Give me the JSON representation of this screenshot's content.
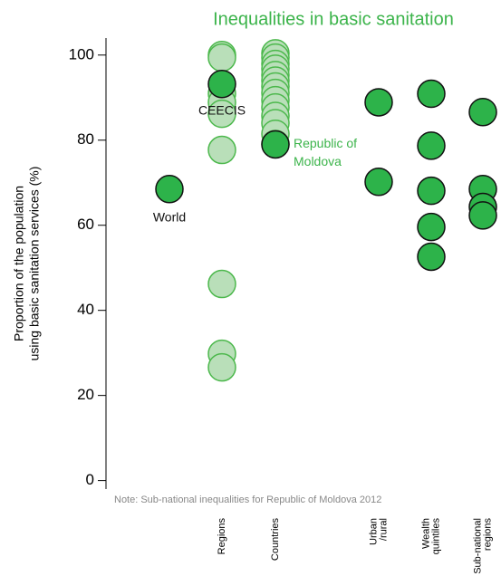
{
  "chart_data": {
    "type": "strip",
    "title": "Inequalities in basic sanitation",
    "ylabel": [
      "Proportion of the population",
      "using basic sanitation services (%)"
    ],
    "note": "Note: Sub-national inequalities for Republic of Moldova  2012",
    "categories": [
      null,
      [
        "Regions"
      ],
      [
        "Countries"
      ],
      [
        "Urban",
        "/rural"
      ],
      [
        "Wealth",
        "quintiles"
      ],
      [
        "Sub-national",
        "regions"
      ]
    ],
    "ylim": [
      -2,
      104
    ],
    "yticks": [
      0,
      20,
      40,
      60,
      80,
      100
    ],
    "series": [
      {
        "color": "#b9dfb9",
        "stroke": "#4cb84c",
        "values": [
          [],
          [
            100,
            99.4,
            90.9,
            88.9,
            86.2,
            77.7,
            46.2,
            29.8,
            26.6
          ],
          [
            100.4,
            99.4,
            97.9,
            96.8,
            95.3,
            94.0,
            92.6,
            91.1,
            89.4,
            87.7,
            85.7,
            84.0,
            81.5,
            79.1
          ],
          [],
          [],
          []
        ]
      },
      {
        "color": "#2db34a",
        "stroke": "#111111",
        "values": [
          [
            68.5
          ],
          [
            93.2
          ],
          [
            79
          ],
          [
            88.9,
            70.2
          ],
          [
            90.9,
            78.7,
            68.1,
            59.6,
            52.6
          ],
          [
            86.6,
            68.5,
            64.3,
            62.3
          ]
        ]
      }
    ],
    "annotations": [
      {
        "text": "World",
        "category": 0,
        "value": 68.5,
        "color": "#111111"
      },
      {
        "text": "CEECIS",
        "category": 1,
        "value": 93.2,
        "color": "#111111"
      },
      {
        "text": [
          "Republic of",
          "Moldova"
        ],
        "category": 2,
        "value": 79,
        "color": "#3cb44b"
      }
    ]
  }
}
